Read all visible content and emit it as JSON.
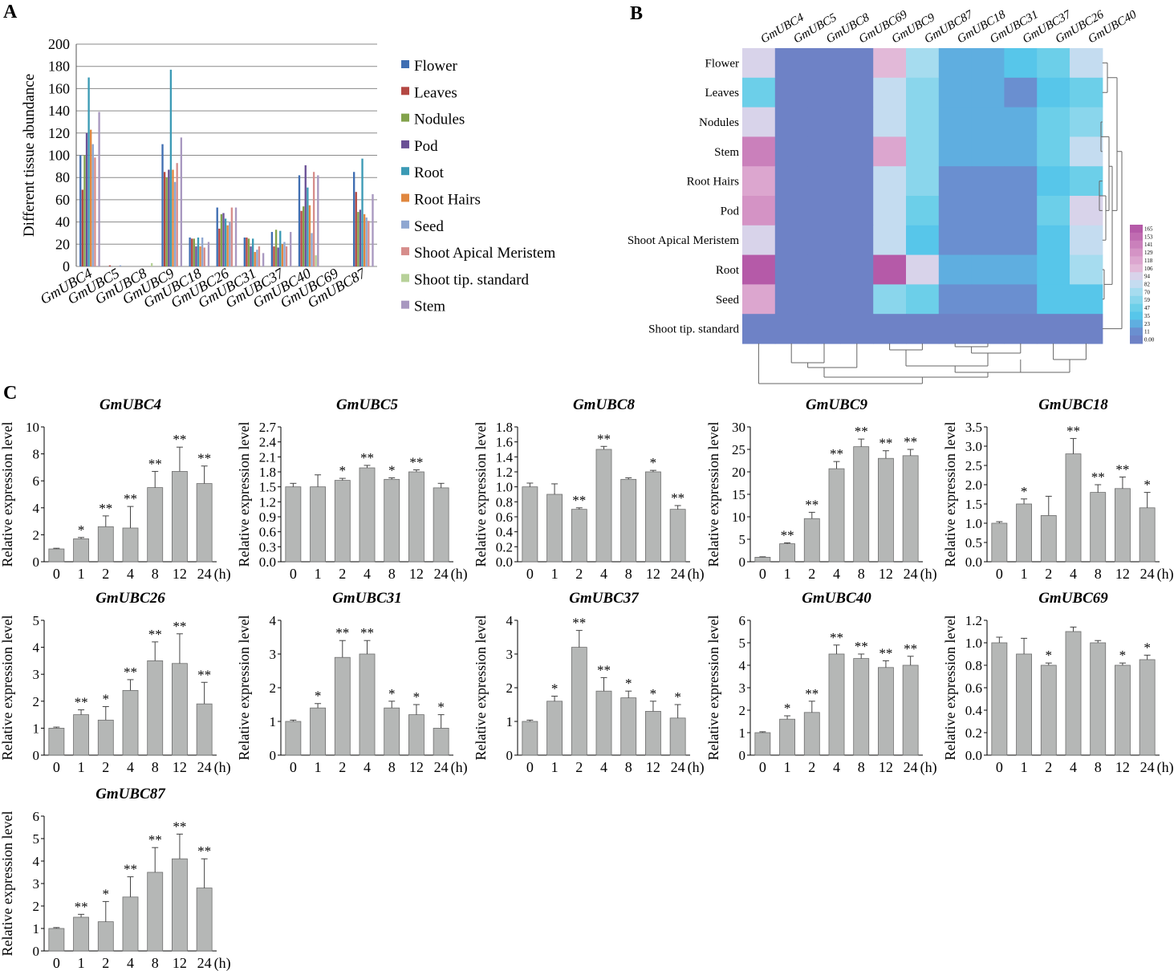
{
  "figure": {
    "panel_labels": [
      "A",
      "B",
      "C"
    ],
    "highlight_color": "#e8262b"
  },
  "chart_data": [
    {
      "id": "A",
      "type": "bar",
      "ylabel": "Different tissue abundance",
      "ylim": [
        0,
        200
      ],
      "yticks": [
        0,
        20,
        40,
        60,
        80,
        100,
        120,
        140,
        160,
        180,
        200
      ],
      "grid": true,
      "legend_position": "right",
      "highlight_category": "GmUBC9",
      "categories": [
        "GmUBC4",
        "GmUBC5",
        "GmUBC8",
        "GmUBC9",
        "GmUBC18",
        "GmUBC26",
        "GmUBC31",
        "GmUBC37",
        "GmUBC40",
        "GmUBC69",
        "GmUBC87"
      ],
      "series": [
        {
          "name": "Flower",
          "color": "#3f6eb2",
          "values": [
            100,
            0,
            0,
            110,
            26,
            53,
            26,
            31,
            82,
            0,
            85
          ]
        },
        {
          "name": "Leaves",
          "color": "#b44843",
          "values": [
            69,
            1,
            0,
            85,
            25,
            34,
            26,
            18,
            50,
            0,
            67
          ]
        },
        {
          "name": "Nodules",
          "color": "#82a24b",
          "values": [
            100,
            0,
            0,
            80,
            25,
            47,
            25,
            33,
            54,
            0,
            49
          ]
        },
        {
          "name": "Pod",
          "color": "#6a5095",
          "values": [
            120,
            0,
            0,
            87,
            18,
            48,
            18,
            17,
            91,
            0,
            51
          ]
        },
        {
          "name": "Root",
          "color": "#3b9ab5",
          "values": [
            170,
            0,
            0,
            177,
            26,
            43,
            25,
            32,
            71,
            0,
            97
          ]
        },
        {
          "name": "Root Hairs",
          "color": "#e0873f",
          "values": [
            123,
            0,
            0,
            87,
            18,
            37,
            13,
            20,
            55,
            0,
            47
          ]
        },
        {
          "name": "Seed",
          "color": "#8fa7d1",
          "values": [
            110,
            1,
            0,
            76,
            26,
            40,
            15,
            22,
            30,
            0,
            44
          ]
        },
        {
          "name": "Shoot Apical Meristem",
          "color": "#d68d8b",
          "values": [
            98,
            0,
            0,
            93,
            17,
            53,
            18,
            18,
            85,
            0,
            41
          ]
        },
        {
          "name": "Shoot tip. standard",
          "color": "#b7d199",
          "values": [
            0,
            0,
            3,
            0,
            0,
            0,
            0,
            0,
            10,
            0,
            0
          ]
        },
        {
          "name": "Stem",
          "color": "#a898c0",
          "values": [
            139,
            0,
            0,
            116,
            22,
            53,
            12,
            31,
            82,
            0,
            65
          ]
        }
      ]
    },
    {
      "id": "B",
      "type": "heatmap",
      "columns": [
        "GmUBC4",
        "GmUBC5",
        "GmUBC8",
        "GmUBC69",
        "GmUBC9",
        "GmUBC87",
        "GmUBC18",
        "GmUBC31",
        "GmUBC37",
        "GmUBC26",
        "GmUBC40"
      ],
      "rows": [
        "Flower",
        "Leaves",
        "Nodules",
        "Stem",
        "Root Hairs",
        "Pod",
        "Shoot Apical Meristem",
        "Root",
        "Seed",
        "Shoot tip. standard"
      ],
      "highlight_column": "GmUBC9",
      "highlight_row": "Root",
      "scale_labels": [
        "165",
        "153",
        "141",
        "129",
        "118",
        "106",
        "94",
        "82",
        "70",
        "59",
        "47",
        "35",
        "23",
        "11",
        "0.00"
      ],
      "scale_colors": [
        "#b55aa8",
        "#c06cb1",
        "#ca80bb",
        "#d493c5",
        "#dca6cf",
        "#e2b9d8",
        "#d8d3ea",
        "#c4dcf0",
        "#a6dcef",
        "#8ad6ec",
        "#6ccfe9",
        "#57c6ea",
        "#5faee0",
        "#6a8fd0",
        "#6e82c6"
      ],
      "values": [
        [
          100,
          0,
          0,
          0,
          110,
          69,
          26,
          26,
          31,
          53,
          82
        ],
        [
          53,
          0,
          0,
          0,
          80,
          60,
          25,
          25,
          8,
          40,
          50
        ],
        [
          90,
          0,
          0,
          0,
          80,
          55,
          25,
          25,
          25,
          45,
          55
        ],
        [
          139,
          0,
          0,
          0,
          116,
          60,
          22,
          22,
          22,
          53,
          82
        ],
        [
          120,
          0,
          0,
          0,
          80,
          55,
          16,
          16,
          16,
          35,
          47
        ],
        [
          125,
          0,
          0,
          0,
          80,
          47,
          16,
          16,
          16,
          48,
          91
        ],
        [
          100,
          0,
          0,
          0,
          82,
          41,
          16,
          16,
          16,
          35,
          85
        ],
        [
          165,
          0,
          0,
          0,
          165,
          98,
          26,
          26,
          26,
          35,
          71
        ],
        [
          115,
          0,
          0,
          0,
          55,
          44,
          16,
          16,
          16,
          40,
          30
        ],
        [
          0,
          0,
          0,
          0,
          0,
          0,
          0,
          0,
          0,
          0,
          0
        ]
      ]
    },
    {
      "id": "C",
      "type": "bar",
      "ylabel": "Relative expression level",
      "xlabel_unit": "(h)",
      "categories": [
        "0",
        "1",
        "2",
        "4",
        "8",
        "12",
        "24"
      ],
      "highlight_title": "GmUBC9",
      "panels": [
        {
          "title": "GmUBC4",
          "ylim": [
            0,
            10
          ],
          "yticks": [
            "0",
            "2",
            "4",
            "6",
            "8",
            "10"
          ],
          "values": [
            0.95,
            1.7,
            2.6,
            2.5,
            5.5,
            6.7,
            5.8
          ],
          "errors": [
            0.05,
            0.1,
            0.8,
            1.6,
            1.2,
            1.8,
            1.3
          ],
          "sig": [
            "",
            "*",
            "**",
            "**",
            "**",
            "**",
            "**"
          ]
        },
        {
          "title": "GmUBC5",
          "ylim": [
            0,
            2.7
          ],
          "yticks": [
            "0.0",
            "0.3",
            "0.6",
            "0.9",
            "1.2",
            "1.5",
            "1.8",
            "2.1",
            "2.4",
            "2.7"
          ],
          "values": [
            1.5,
            1.5,
            1.63,
            1.88,
            1.65,
            1.8,
            1.48
          ],
          "errors": [
            0.07,
            0.24,
            0.04,
            0.05,
            0.03,
            0.04,
            0.09
          ],
          "sig": [
            "",
            "",
            "*",
            "**",
            "*",
            "**",
            ""
          ]
        },
        {
          "title": "GmUBC8",
          "ylim": [
            0,
            1.8
          ],
          "yticks": [
            "0.0",
            "0.2",
            "0.4",
            "0.6",
            "0.8",
            "1.0",
            "1.2",
            "1.4",
            "1.6",
            "1.8"
          ],
          "values": [
            1.0,
            0.9,
            0.7,
            1.5,
            1.1,
            1.2,
            0.7
          ],
          "errors": [
            0.05,
            0.14,
            0.02,
            0.04,
            0.02,
            0.02,
            0.05
          ],
          "sig": [
            "",
            "",
            "**",
            "**",
            "",
            "*",
            "**"
          ]
        },
        {
          "title": "GmUBC9",
          "ylim": [
            0,
            30
          ],
          "yticks": [
            "0",
            "5",
            "10",
            "15",
            "20",
            "25",
            "30"
          ],
          "values": [
            1.0,
            4.0,
            9.6,
            20.7,
            25.6,
            23.0,
            23.6
          ],
          "errors": [
            0.1,
            0.2,
            1.4,
            1.6,
            1.7,
            1.7,
            1.4
          ],
          "sig": [
            "",
            "**",
            "**",
            "**",
            "**",
            "**",
            "**"
          ]
        },
        {
          "title": "GmUBC18",
          "ylim": [
            0,
            3.5
          ],
          "yticks": [
            "0.0",
            "0.5",
            "1.0",
            "1.5",
            "2.0",
            "2.5",
            "3.0",
            "3.5"
          ],
          "values": [
            1.0,
            1.5,
            1.2,
            2.8,
            1.8,
            1.9,
            1.4
          ],
          "errors": [
            0.04,
            0.13,
            0.5,
            0.4,
            0.2,
            0.3,
            0.4
          ],
          "sig": [
            "",
            "*",
            "",
            "**",
            "**",
            "**",
            "*"
          ]
        },
        {
          "title": "GmUBC26",
          "ylim": [
            0,
            5
          ],
          "yticks": [
            "0",
            "1",
            "2",
            "3",
            "4",
            "5"
          ],
          "values": [
            1.0,
            1.5,
            1.3,
            2.4,
            3.5,
            3.4,
            1.9
          ],
          "errors": [
            0.04,
            0.18,
            0.5,
            0.4,
            0.7,
            1.1,
            0.8
          ],
          "sig": [
            "",
            "**",
            "*",
            "**",
            "**",
            "**",
            "**"
          ]
        },
        {
          "title": "GmUBC31",
          "ylim": [
            0,
            4
          ],
          "yticks": [
            "0",
            "1",
            "2",
            "3",
            "4"
          ],
          "values": [
            1.0,
            1.4,
            2.9,
            3.0,
            1.4,
            1.2,
            0.8
          ],
          "errors": [
            0.04,
            0.13,
            0.5,
            0.4,
            0.2,
            0.3,
            0.4
          ],
          "sig": [
            "",
            "*",
            "**",
            "**",
            "*",
            "*",
            "*"
          ]
        },
        {
          "title": "GmUBC37",
          "ylim": [
            0,
            4
          ],
          "yticks": [
            "0",
            "1",
            "2",
            "3",
            "4"
          ],
          "values": [
            1.0,
            1.6,
            3.2,
            1.9,
            1.7,
            1.3,
            1.1
          ],
          "errors": [
            0.04,
            0.15,
            0.5,
            0.4,
            0.2,
            0.3,
            0.4
          ],
          "sig": [
            "",
            "*",
            "**",
            "**",
            "*",
            "*",
            "*"
          ]
        },
        {
          "title": "GmUBC40",
          "ylim": [
            0,
            6
          ],
          "yticks": [
            "0",
            "1",
            "2",
            "3",
            "4",
            "5",
            "6"
          ],
          "values": [
            1.0,
            1.6,
            1.9,
            4.5,
            4.3,
            3.9,
            4.0
          ],
          "errors": [
            0.04,
            0.15,
            0.5,
            0.4,
            0.2,
            0.3,
            0.4
          ],
          "sig": [
            "",
            "*",
            "**",
            "**",
            "**",
            "**",
            "**"
          ]
        },
        {
          "title": "GmUBC69",
          "ylim": [
            0,
            1.2
          ],
          "yticks": [
            "0.0",
            "0.2",
            "0.4",
            "0.6",
            "0.8",
            "1.0",
            "1.2"
          ],
          "values": [
            1.0,
            0.9,
            0.8,
            1.1,
            1.0,
            0.8,
            0.85
          ],
          "errors": [
            0.05,
            0.14,
            0.02,
            0.04,
            0.02,
            0.02,
            0.04
          ],
          "sig": [
            "",
            "",
            "*",
            "",
            "",
            "*",
            "*"
          ]
        },
        {
          "title": "GmUBC87",
          "ylim": [
            0,
            6
          ],
          "yticks": [
            "0",
            "1",
            "2",
            "3",
            "4",
            "5",
            "6"
          ],
          "values": [
            1.0,
            1.5,
            1.3,
            2.4,
            3.5,
            4.1,
            2.8
          ],
          "errors": [
            0.04,
            0.13,
            0.9,
            0.9,
            1.1,
            1.1,
            1.3
          ],
          "sig": [
            "",
            "**",
            "*",
            "**",
            "**",
            "**",
            "**"
          ]
        }
      ]
    }
  ]
}
